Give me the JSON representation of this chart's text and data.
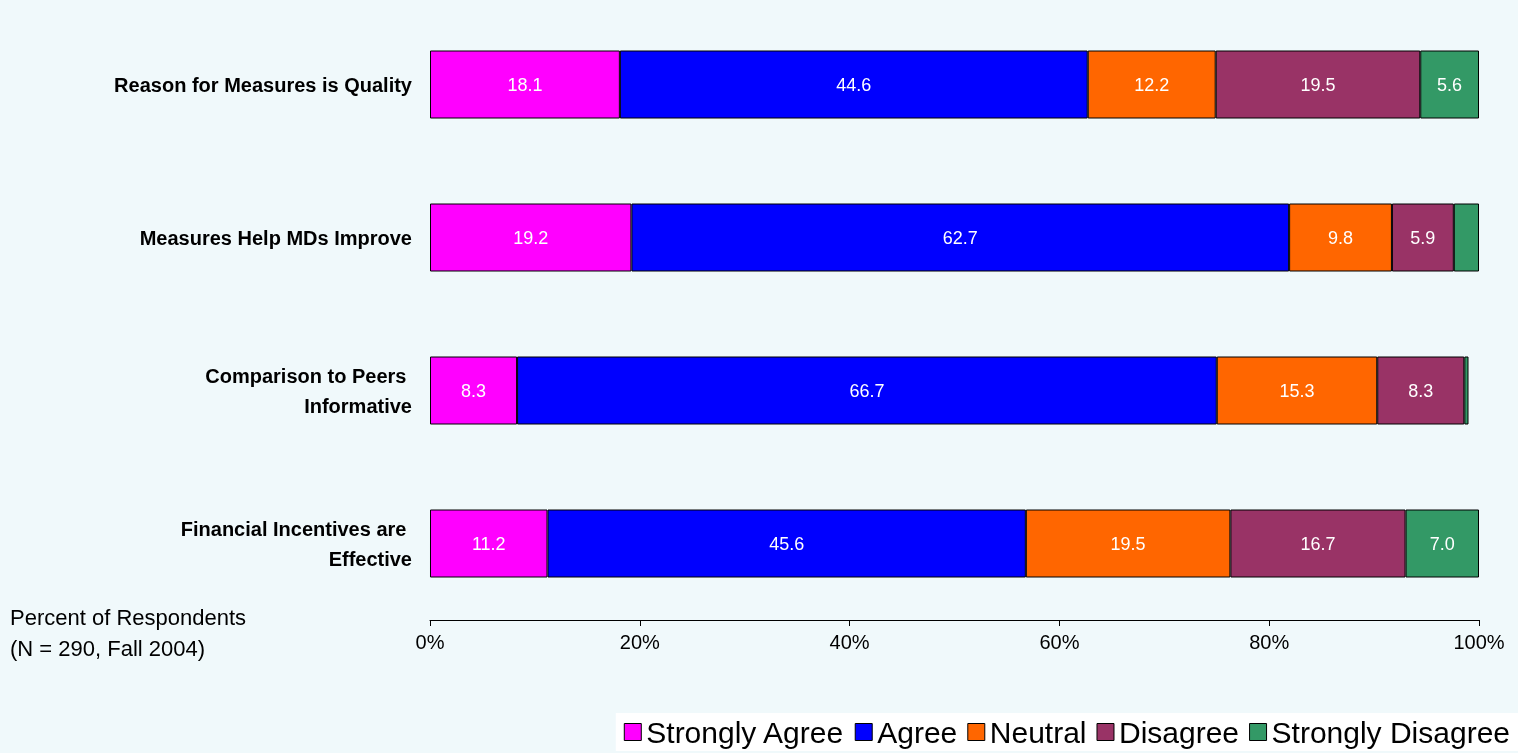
{
  "chart_data": {
    "type": "bar",
    "orientation": "horizontal",
    "stacked": true,
    "xlabel": "Percent of Respondents\n(N = 290, Fall 2004)",
    "categories": [
      "Reason for Measures is Quality",
      "Measures Help MDs Improve",
      "Comparison to Peers Informative",
      "Financial Incentives are Effective"
    ],
    "series": [
      {
        "name": "Strongly Agree",
        "color": "#ff00ff",
        "values": [
          18.1,
          19.2,
          8.3,
          11.2
        ],
        "value_labels": [
          "18.1",
          "19.2",
          "8.3",
          "11.2"
        ]
      },
      {
        "name": "Agree",
        "color": "#0000ff",
        "values": [
          44.6,
          62.7,
          66.7,
          45.6
        ],
        "value_labels": [
          "44.6",
          "62.7",
          "66.7",
          "45.6"
        ]
      },
      {
        "name": "Neutral",
        "color": "#ff6600",
        "values": [
          12.2,
          9.8,
          15.3,
          19.5
        ],
        "value_labels": [
          "12.2",
          "9.8",
          "15.3",
          "19.5"
        ]
      },
      {
        "name": "Disagree",
        "color": "#993366",
        "values": [
          19.5,
          5.9,
          8.3,
          16.7
        ],
        "value_labels": [
          "19.5",
          "5.9",
          "8.3",
          "16.7"
        ]
      },
      {
        "name": "Strongly Disagree",
        "color": "#339966",
        "values": [
          5.6,
          2.4,
          0.4,
          7.0
        ],
        "value_labels": [
          "5.6",
          null,
          null,
          "7.0"
        ]
      }
    ],
    "xlim": [
      0,
      100
    ],
    "xticks": [
      {
        "value": 0,
        "label": "0%"
      },
      {
        "value": 20,
        "label": "20%"
      },
      {
        "value": 40,
        "label": "40%"
      },
      {
        "value": 60,
        "label": "60%"
      },
      {
        "value": 80,
        "label": "80%"
      },
      {
        "value": 100,
        "label": "100%"
      }
    ],
    "grid": false,
    "legend": "bottom"
  }
}
